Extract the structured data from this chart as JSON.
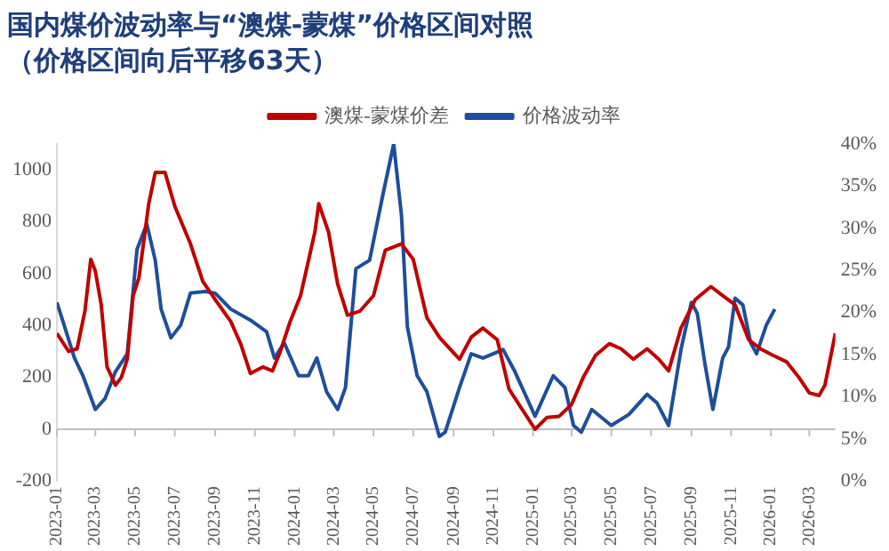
{
  "chart_data": {
    "type": "line",
    "title": "国内煤价波动率与“澳煤-蒙煤”价格区间对照",
    "subtitle": "（价格区间向后平移63天）",
    "legend": "top",
    "grid": false,
    "marker": "none",
    "line_style": "solid",
    "xlim": [
      "2023-01-01",
      "2026-04-10"
    ],
    "xticks": [
      "2023-01",
      "2023-03",
      "2023-05",
      "2023-07",
      "2023-09",
      "2023-11",
      "2024-01",
      "2024-03",
      "2024-05",
      "2024-07",
      "2024-09",
      "2024-11",
      "2025-01",
      "2025-03",
      "2025-05",
      "2025-07",
      "2025-09",
      "2025-11",
      "2026-01",
      "2026-03"
    ],
    "ylim": [
      -200,
      1100
    ],
    "yticks": [
      -200,
      0,
      200,
      400,
      600,
      800,
      1000
    ],
    "y2lim": [
      0,
      40
    ],
    "y2ticks": [
      {
        "value": 0,
        "label": "0%"
      },
      {
        "value": 5,
        "label": "5%"
      },
      {
        "value": 10,
        "label": "10%"
      },
      {
        "value": 15,
        "label": "15%"
      },
      {
        "value": 20,
        "label": "20%"
      },
      {
        "value": 25,
        "label": "25%"
      },
      {
        "value": 30,
        "label": "30%"
      },
      {
        "value": 35,
        "label": "35%"
      },
      {
        "value": 40,
        "label": "40%"
      }
    ],
    "ref_lines": [
      {
        "axis": "y",
        "value": 0,
        "color": "#bfbfbf"
      }
    ],
    "series": [
      {
        "name": "澳煤-蒙煤价差",
        "color": "#c00000",
        "x": [
          "2023-01-01",
          "2023-01-19",
          "2023-02-01",
          "2023-02-13",
          "2023-02-22",
          "2023-03-01",
          "2023-03-10",
          "2023-03-19",
          "2023-04-01",
          "2023-04-10",
          "2023-04-19",
          "2023-04-28",
          "2023-05-07",
          "2023-05-22",
          "2023-06-01",
          "2023-06-16",
          "2023-07-01",
          "2023-07-25",
          "2023-08-13",
          "2023-09-01",
          "2023-09-25",
          "2023-10-10",
          "2023-10-25",
          "2023-11-13",
          "2023-11-28",
          "2023-12-10",
          "2023-12-25",
          "2024-01-10",
          "2024-02-01",
          "2024-02-07",
          "2024-02-22",
          "2024-03-07",
          "2024-03-22",
          "2024-04-10",
          "2024-05-01",
          "2024-05-19",
          "2024-06-13",
          "2024-07-01",
          "2024-07-22",
          "2024-08-10",
          "2024-08-19",
          "2024-09-10",
          "2024-09-28",
          "2024-10-16",
          "2024-11-07",
          "2024-11-25",
          "2024-12-13",
          "2025-01-04",
          "2025-01-22",
          "2025-02-10",
          "2025-03-01",
          "2025-03-19",
          "2025-04-07",
          "2025-04-28",
          "2025-05-16",
          "2025-06-04",
          "2025-06-25",
          "2025-07-13",
          "2025-07-28",
          "2025-08-16",
          "2025-09-07",
          "2025-10-01",
          "2025-10-19",
          "2025-11-07",
          "2025-11-28",
          "2025-12-16",
          "2026-01-04",
          "2026-01-25",
          "2026-02-13",
          "2026-03-01",
          "2026-03-16",
          "2026-03-25",
          "2026-04-10"
        ],
        "values": [
          370,
          300,
          310,
          455,
          655,
          610,
          480,
          240,
          170,
          200,
          270,
          515,
          585,
          870,
          990,
          990,
          860,
          715,
          570,
          500,
          415,
          330,
          215,
          240,
          225,
          300,
          415,
          515,
          760,
          870,
          760,
          560,
          440,
          455,
          515,
          690,
          715,
          655,
          430,
          355,
          330,
          270,
          355,
          390,
          345,
          155,
          85,
          0,
          45,
          50,
          95,
          200,
          285,
          330,
          310,
          270,
          310,
          270,
          225,
          390,
          500,
          550,
          515,
          480,
          345,
          310,
          285,
          260,
          200,
          140,
          130,
          170,
          370
        ]
      },
      {
        "name": "价格波动率",
        "color": "#1f4e9a",
        "axis": "y2",
        "x": [
          "2023-01-01",
          "2023-01-13",
          "2023-01-28",
          "2023-02-10",
          "2023-03-01",
          "2023-03-16",
          "2023-04-01",
          "2023-04-19",
          "2023-05-04",
          "2023-05-19",
          "2023-06-01",
          "2023-06-10",
          "2023-06-25",
          "2023-07-10",
          "2023-07-25",
          "2023-08-16",
          "2023-09-01",
          "2023-09-25",
          "2023-10-25",
          "2023-11-19",
          "2023-12-01",
          "2023-12-16",
          "2024-01-07",
          "2024-01-22",
          "2024-02-04",
          "2024-02-19",
          "2024-03-07",
          "2024-03-19",
          "2024-04-04",
          "2024-04-25",
          "2024-05-16",
          "2024-06-01",
          "2024-06-13",
          "2024-06-22",
          "2024-07-07",
          "2024-07-22",
          "2024-08-10",
          "2024-08-19",
          "2024-09-10",
          "2024-09-28",
          "2024-10-16",
          "2024-11-16",
          "2024-12-04",
          "2025-01-04",
          "2025-02-01",
          "2025-02-19",
          "2025-03-04",
          "2025-03-16",
          "2025-04-01",
          "2025-05-01",
          "2025-05-28",
          "2025-06-25",
          "2025-07-10",
          "2025-07-28",
          "2025-08-16",
          "2025-09-01",
          "2025-09-10",
          "2025-09-22",
          "2025-10-04",
          "2025-10-19",
          "2025-10-28",
          "2025-11-07",
          "2025-11-19",
          "2025-12-01",
          "2025-12-10",
          "2025-12-25",
          "2026-01-07"
        ],
        "values": [
          21.2,
          18.3,
          14.6,
          12.5,
          8.5,
          9.8,
          13,
          15.1,
          27.5,
          30.5,
          26.2,
          20.4,
          17,
          18.5,
          22.3,
          22.5,
          22.3,
          20.4,
          19.1,
          17.7,
          14.6,
          16.4,
          12.5,
          12.5,
          14.6,
          10.6,
          8.5,
          11.1,
          25.2,
          26.2,
          34.2,
          40,
          31.5,
          18.3,
          12.5,
          10.6,
          5.3,
          5.8,
          11.1,
          15.1,
          14.6,
          15.6,
          13,
          7.7,
          12.5,
          11.1,
          6.6,
          5.8,
          8.5,
          6.6,
          7.9,
          10.3,
          9.3,
          6.6,
          15.6,
          21.2,
          19.9,
          13.8,
          8.5,
          14.6,
          15.9,
          21.7,
          20.9,
          16.4,
          15.1,
          18.5,
          20.4
        ]
      }
    ]
  }
}
